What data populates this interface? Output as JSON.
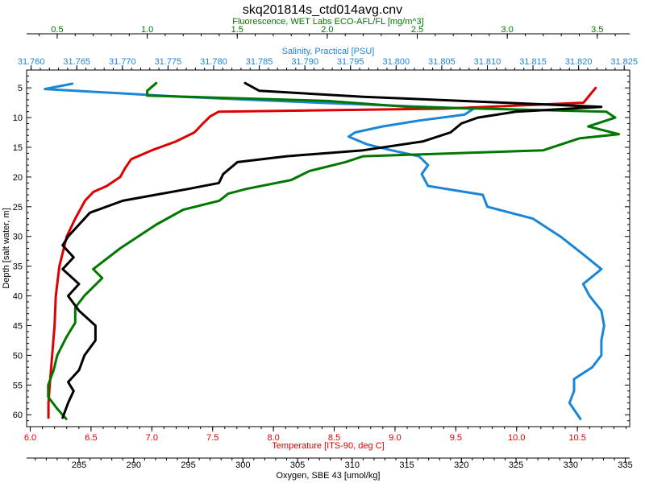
{
  "chart_data": {
    "type": "line",
    "title": "skq201814s_ctd014avg.cnv",
    "grid": false,
    "legend": "none",
    "y_axis": {
      "label": "Depth [salt water, m]",
      "range": [
        62,
        2
      ],
      "inverted": true,
      "ticks": [
        5,
        10,
        15,
        20,
        25,
        30,
        35,
        40,
        45,
        50,
        55,
        60
      ]
    },
    "x_axes": [
      {
        "id": "fluorescence",
        "label": "Fluorescence, WET Labs ECO-AFL/FL [mg/m^3]",
        "position": "top",
        "color": "#007700",
        "range": [
          0.33,
          3.68
        ],
        "ticks": [
          0.5,
          1.0,
          1.5,
          2.0,
          2.5,
          3.0,
          3.5
        ],
        "tick_labels": [
          "0.5",
          "1.0",
          "1.5",
          "2.0",
          "2.5",
          "3.0",
          "3.5"
        ]
      },
      {
        "id": "salinity",
        "label": "Salinity, Practical [PSU]",
        "position": "top",
        "color": "#1a86d6",
        "range": [
          31.7595,
          31.8256
        ],
        "ticks": [
          31.76,
          31.765,
          31.77,
          31.775,
          31.78,
          31.785,
          31.79,
          31.795,
          31.8,
          31.805,
          31.81,
          31.815,
          31.82,
          31.825
        ],
        "tick_labels": [
          "31.760",
          "31.765",
          "31.770",
          "31.775",
          "31.780",
          "31.785",
          "31.790",
          "31.795",
          "31.800",
          "31.805",
          "31.810",
          "31.815",
          "31.820",
          "31.825"
        ]
      },
      {
        "id": "temperature",
        "label": "Temperature [ITS-90, deg C]",
        "position": "bottom",
        "color": "#dd0000",
        "range": [
          5.97,
          10.93
        ],
        "ticks": [
          6.0,
          6.5,
          7.0,
          7.5,
          8.0,
          8.5,
          9.0,
          9.5,
          10.0,
          10.5
        ],
        "tick_labels": [
          "6.0",
          "6.5",
          "7.0",
          "7.5",
          "8.0",
          "8.5",
          "9.0",
          "9.5",
          "10.0",
          "10.5"
        ]
      },
      {
        "id": "oxygen",
        "label": "Oxygen, SBE 43 [umol/kg]",
        "position": "bottom",
        "color": "#000000",
        "range": [
          280.2,
          335.4
        ],
        "ticks": [
          285,
          290,
          295,
          300,
          305,
          310,
          315,
          320,
          325,
          330,
          335
        ],
        "tick_labels": [
          "285",
          "290",
          "295",
          "300",
          "305",
          "310",
          "315",
          "320",
          "325",
          "330",
          "335"
        ]
      }
    ],
    "series": [
      {
        "axis": "temperature",
        "color": "#dd0000",
        "depth": [
          5,
          7.5,
          8.5,
          9,
          9.8,
          11,
          12.5,
          14,
          15.5,
          17,
          18.5,
          20,
          21.5,
          22.5,
          24,
          25.5,
          27,
          30,
          35,
          40,
          45,
          50,
          55,
          58,
          60.5
        ],
        "x": [
          10.65,
          10.55,
          9.4,
          7.55,
          7.48,
          7.42,
          7.35,
          7.2,
          7.0,
          6.83,
          6.78,
          6.74,
          6.63,
          6.52,
          6.45,
          6.41,
          6.37,
          6.3,
          6.24,
          6.21,
          6.2,
          6.18,
          6.16,
          6.15,
          6.15
        ]
      },
      {
        "axis": "salinity",
        "color": "#1a86d6",
        "depth": [
          4.3,
          5.2,
          6.5,
          7.5,
          8.5,
          9.5,
          10.5,
          11.5,
          12.5,
          13.2,
          14.5,
          15.5,
          16.5,
          18,
          19.5,
          21.5,
          22.5,
          23,
          25,
          27,
          30,
          33,
          35.5,
          38,
          40,
          42.5,
          45,
          47.5,
          50,
          52,
          54,
          56,
          58,
          60.7
        ],
        "x": [
          31.7645,
          31.7615,
          31.7765,
          31.7915,
          31.8085,
          31.8075,
          31.8025,
          31.7985,
          31.7955,
          31.7948,
          31.7968,
          31.7995,
          31.8025,
          31.8035,
          31.8028,
          31.8035,
          31.8075,
          31.8095,
          31.81,
          31.815,
          31.818,
          31.8205,
          31.8225,
          31.8205,
          31.8212,
          31.8225,
          31.8228,
          31.8225,
          31.8225,
          31.8215,
          31.8195,
          31.8195,
          31.819,
          31.8202
        ]
      },
      {
        "axis": "fluorescence",
        "color": "#007700",
        "depth": [
          4.2,
          5.5,
          6.3,
          7.2,
          8.2,
          9.0,
          10.0,
          11.5,
          12.8,
          13.5,
          15.5,
          16.5,
          17.5,
          19,
          20.5,
          22,
          22.8,
          24,
          25.5,
          28,
          30,
          32,
          35.5,
          37,
          40,
          42,
          44.5,
          47,
          50,
          52.5,
          55,
          57,
          59,
          60.7
        ],
        "x": [
          1.05,
          1.0,
          1.0,
          2.0,
          2.45,
          3.55,
          3.6,
          3.45,
          3.62,
          3.4,
          3.2,
          2.2,
          2.1,
          1.9,
          1.8,
          1.55,
          1.45,
          1.4,
          1.2,
          1.05,
          0.95,
          0.85,
          0.7,
          0.75,
          0.65,
          0.6,
          0.6,
          0.55,
          0.5,
          0.48,
          0.45,
          0.45,
          0.5,
          0.55
        ]
      },
      {
        "axis": "oxygen",
        "color": "#000000",
        "depth": [
          4.2,
          5.5,
          6.5,
          7.5,
          8.2,
          9.0,
          10.0,
          11.0,
          12.5,
          14.0,
          15.5,
          16.5,
          17.5,
          19.5,
          21.0,
          22.0,
          23.0,
          24.0,
          26.0,
          28.0,
          30.0,
          31.5,
          33.5,
          35.5,
          38.0,
          40.0,
          42.5,
          45.0,
          47.5,
          50.0,
          52.5,
          54.5,
          56.0,
          58.0,
          60.5
        ],
        "x": [
          300.2,
          301.5,
          311.0,
          324.0,
          332.8,
          325.0,
          321.5,
          320.0,
          319.0,
          316.5,
          311.0,
          304.0,
          299.5,
          298.2,
          297.8,
          295.0,
          292.0,
          289.0,
          286.0,
          285.0,
          284.0,
          283.5,
          284.5,
          283.5,
          285.0,
          284.0,
          285.0,
          286.5,
          286.5,
          285.5,
          285.0,
          284.0,
          284.5,
          284.0,
          283.5
        ]
      }
    ]
  }
}
